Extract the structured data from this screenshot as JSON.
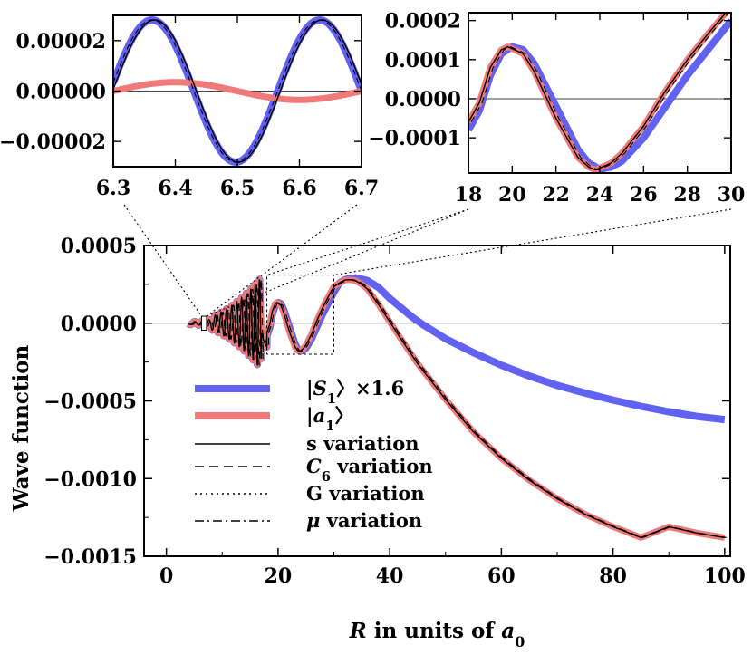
{
  "chart_data": [
    {
      "id": "main",
      "type": "line",
      "xlabel": {
        "var": "R",
        "text": " in units of ",
        "sym": "a",
        "sub": "0"
      },
      "ylabel": "Wave function",
      "xlim": [
        -4,
        101
      ],
      "ylim": [
        -0.0015,
        0.0005
      ],
      "xticks": [
        0,
        20,
        40,
        60,
        80,
        100
      ],
      "xtick_labels": [
        "0",
        "20",
        "40",
        "60",
        "80",
        "100"
      ],
      "yticks": [
        0.0005,
        0.0,
        -0.0005,
        -0.001,
        -0.0015
      ],
      "ytick_labels": [
        "0.0005",
        "0.0000",
        "−0.0005",
        "−0.0010",
        "−0.0015"
      ],
      "zoom_box": {
        "x": [
          18,
          30
        ],
        "y": [
          -0.0002,
          0.00031
        ]
      },
      "legend": {
        "placement": "lower-left",
        "entries": [
          {
            "key": "S1",
            "pre": "|",
            "var": "S",
            "sub": "1",
            "post": "〉×1.6",
            "style": "thick",
            "color": "#6262f2"
          },
          {
            "key": "a1",
            "pre": "|",
            "var": "a",
            "sub": "1",
            "post": "〉",
            "style": "thick",
            "color": "#f07a7a"
          },
          {
            "key": "s",
            "text": "s variation",
            "style": "solid",
            "color": "#000000"
          },
          {
            "key": "C6",
            "var": "C",
            "sub": "6",
            "post": " variation",
            "style": "dashed",
            "color": "#000000"
          },
          {
            "key": "G",
            "text": "G variation",
            "style": "dotted",
            "color": "#000000"
          },
          {
            "key": "mu",
            "var": "μ",
            "post": " variation",
            "style": "dashdot",
            "color": "#000000"
          }
        ]
      },
      "series": [
        {
          "name": "S1",
          "points": [
            [
              30,
              0.00022
            ],
            [
              31,
              0.00026
            ],
            [
              32,
              0.00028
            ],
            [
              33,
              0.00029
            ],
            [
              34,
              0.000292
            ],
            [
              36,
              0.000275
            ],
            [
              38,
              0.00023
            ],
            [
              40,
              0.00016
            ],
            [
              42,
              0.0001
            ],
            [
              44,
              4e-05
            ],
            [
              46,
              -1e-05
            ],
            [
              50,
              -0.0001
            ],
            [
              55,
              -0.00019
            ],
            [
              60,
              -0.00027
            ],
            [
              65,
              -0.00034
            ],
            [
              70,
              -0.0004
            ],
            [
              75,
              -0.00045
            ],
            [
              80,
              -0.000495
            ],
            [
              85,
              -0.000535
            ],
            [
              90,
              -0.00057
            ],
            [
              95,
              -0.0006
            ],
            [
              100,
              -0.00062
            ]
          ]
        },
        {
          "name": "a1",
          "points": [
            [
              30,
              0.00022
            ],
            [
              31,
              0.00026
            ],
            [
              32,
              0.000278
            ],
            [
              33,
              0.00028
            ],
            [
              34,
              0.000272
            ],
            [
              35,
              0.00025
            ],
            [
              36,
              0.00022
            ],
            [
              38,
              0.00012
            ],
            [
              40,
              1e-05
            ],
            [
              42,
              -0.0001
            ],
            [
              45,
              -0.00026
            ],
            [
              50,
              -0.00049
            ],
            [
              55,
              -0.0007
            ],
            [
              60,
              -0.00087
            ],
            [
              65,
              -0.00101
            ],
            [
              70,
              -0.00113
            ],
            [
              75,
              -0.00123
            ],
            [
              80,
              -0.00131
            ],
            [
              85,
              -0.00138
            ],
            [
              90,
              -0.00131
            ],
            [
              95,
              -0.00135
            ],
            [
              100,
              -0.00138
            ]
          ]
        }
      ]
    },
    {
      "id": "inset-left",
      "type": "line",
      "xlim": [
        6.3,
        6.7
      ],
      "ylim": [
        -3e-05,
        3e-05
      ],
      "xticks": [
        6.3,
        6.4,
        6.5,
        6.6,
        6.7
      ],
      "xtick_labels": [
        "6.3",
        "6.4",
        "6.5",
        "6.6",
        "6.7"
      ],
      "yticks": [
        2e-05,
        0.0,
        -2e-05
      ],
      "ytick_labels": [
        "0.00002",
        "0.00000",
        "−0.00002"
      ],
      "series": [
        {
          "name": "S1",
          "amplitude": 2.82e-05,
          "period": 0.27,
          "phase_x": 6.295
        },
        {
          "name": "a1",
          "amplitude": 3.5e-06,
          "period": 0.4,
          "phase_x": 6.3
        }
      ]
    },
    {
      "id": "inset-right",
      "type": "line",
      "xlim": [
        18,
        30
      ],
      "ylim": [
        -0.00019,
        0.00022
      ],
      "xticks": [
        18,
        20,
        22,
        24,
        26,
        28,
        30
      ],
      "xtick_labels": [
        "18",
        "20",
        "22",
        "24",
        "26",
        "28",
        "30"
      ],
      "yticks": [
        0.0002,
        0.0001,
        0.0,
        -0.0001
      ],
      "ytick_labels": [
        "0.0002",
        "0.0001",
        "0.0000",
        "−0.0001"
      ],
      "series": [
        {
          "name": "S1",
          "points": [
            [
              18,
              -8e-05
            ],
            [
              18.5,
              -3e-05
            ],
            [
              19,
              6e-05
            ],
            [
              19.5,
              0.000115
            ],
            [
              20,
              0.000133
            ],
            [
              20.5,
              0.000125
            ],
            [
              21,
              9e-05
            ],
            [
              22,
              -2e-05
            ],
            [
              23,
              -0.00013
            ],
            [
              23.5,
              -0.000165
            ],
            [
              24,
              -0.00018
            ],
            [
              24.5,
              -0.000175
            ],
            [
              25,
              -0.00016
            ],
            [
              26,
              -0.0001
            ],
            [
              27,
              -2e-05
            ],
            [
              28,
              6e-05
            ],
            [
              29,
              0.00013
            ],
            [
              30,
              0.0002
            ]
          ]
        },
        {
          "name": "a1",
          "points": [
            [
              18,
              -6e-05
            ],
            [
              18.5,
              -1e-05
            ],
            [
              19,
              8e-05
            ],
            [
              19.5,
              0.000125
            ],
            [
              19.8,
              0.000133
            ],
            [
              20.5,
              0.000115
            ],
            [
              21,
              7e-05
            ],
            [
              22,
              -5e-05
            ],
            [
              23,
              -0.00015
            ],
            [
              23.5,
              -0.000175
            ],
            [
              23.8,
              -0.000182
            ],
            [
              24.5,
              -0.000165
            ],
            [
              25,
              -0.00014
            ],
            [
              26,
              -7e-05
            ],
            [
              27,
              2e-05
            ],
            [
              28,
              0.0001
            ],
            [
              29,
              0.00017
            ],
            [
              30,
              0.000235
            ]
          ]
        }
      ]
    }
  ],
  "colors": {
    "s1": "#6262f2",
    "a1": "#f07a7a",
    "axis": "#000000"
  }
}
